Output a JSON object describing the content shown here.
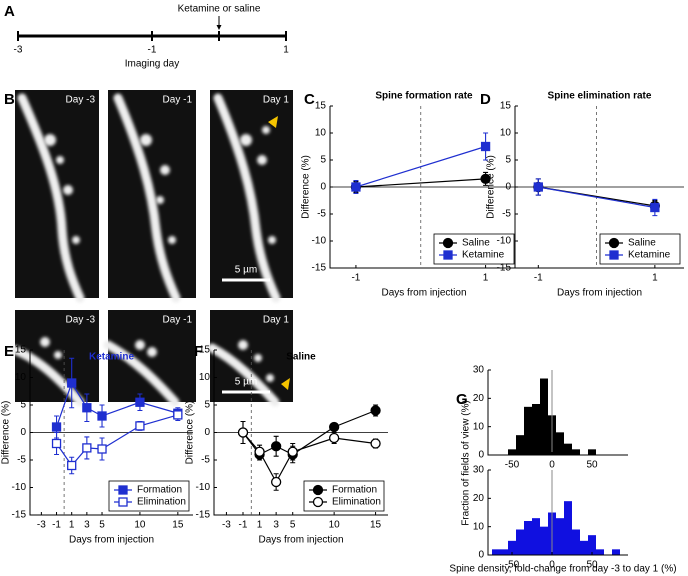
{
  "panel_labels": [
    "A",
    "B",
    "C",
    "D",
    "E",
    "F",
    "G"
  ],
  "timeline": {
    "ticks": [
      -3,
      -1,
      1
    ],
    "label": "Imaging day",
    "event": "Ketamine or saline",
    "event_at": 0
  },
  "micrographs": {
    "rows": [
      [
        "Day -3",
        "Day -1",
        "Day 1"
      ],
      [
        "Day -3",
        "Day -1",
        "Day 1"
      ]
    ],
    "scale_bars": [
      "5 µm",
      "5 µm"
    ]
  },
  "chart_data": [
    {
      "type": "line",
      "title": "Spine formation rate",
      "xlabel": "Days from injection",
      "ylabel": "Difference (%)",
      "xlim": [
        -1.4,
        1.5
      ],
      "xticks": [
        -1,
        1
      ],
      "ylim": [
        -15,
        15
      ],
      "yticks": [
        -15,
        -10,
        -5,
        0,
        5,
        10,
        15
      ],
      "vline": 0,
      "hline": 0,
      "legend": "lower right",
      "x": [
        -1,
        1
      ],
      "series": [
        {
          "name": "Saline",
          "color": "#000000",
          "marker": "circle",
          "filled": true,
          "values": [
            0,
            1.5
          ],
          "errors": [
            1,
            1.2
          ]
        },
        {
          "name": "Ketamine",
          "color": "#1f2fd0",
          "marker": "square",
          "filled": true,
          "values": [
            0,
            7.5
          ],
          "errors": [
            1.2,
            2.5
          ]
        }
      ]
    },
    {
      "type": "line",
      "title": "Spine elimination rate",
      "xlabel": "Days from injection",
      "ylabel": "Difference (%)",
      "xlim": [
        -1.4,
        1.5
      ],
      "xticks": [
        -1,
        1
      ],
      "ylim": [
        -15,
        15
      ],
      "yticks": [
        -15,
        -10,
        -5,
        0,
        5,
        10,
        15
      ],
      "vline": 0,
      "hline": 0,
      "legend": "lower right",
      "x": [
        -1,
        1
      ],
      "series": [
        {
          "name": "Saline",
          "color": "#000000",
          "marker": "circle",
          "filled": true,
          "values": [
            0,
            -3.5
          ],
          "errors": [
            1.5,
            1
          ]
        },
        {
          "name": "Ketamine",
          "color": "#1f2fd0",
          "marker": "square",
          "filled": true,
          "values": [
            0,
            -3.8
          ],
          "errors": [
            1.5,
            1.5
          ]
        }
      ]
    },
    {
      "type": "line",
      "title": "Ketamine",
      "title_color": "#1f2fd0",
      "xlabel": "Days from injection",
      "ylabel": "Difference (%)",
      "xlim": [
        -4.5,
        17
      ],
      "xticks": [
        -3,
        -1,
        1,
        3,
        5,
        10,
        15
      ],
      "ylim": [
        -15,
        15
      ],
      "yticks": [
        -15,
        -10,
        -5,
        0,
        5,
        10,
        15
      ],
      "vline": 0,
      "hline": 0,
      "legend": "lower right",
      "x": [
        -1,
        1,
        3,
        5,
        10,
        15
      ],
      "series": [
        {
          "name": "Formation",
          "color": "#1f2fd0",
          "marker": "square",
          "filled": true,
          "values": [
            1,
            9,
            4.5,
            3,
            5.5,
            3.5
          ],
          "errors": [
            2,
            4.5,
            2.5,
            2,
            1.5,
            1
          ]
        },
        {
          "name": "Elimination",
          "color": "#1f2fd0",
          "marker": "square",
          "filled": false,
          "values": [
            -2,
            -6,
            -2.8,
            -3,
            1.2,
            3.2
          ],
          "errors": [
            2,
            1.5,
            2,
            2,
            0.8,
            1
          ]
        }
      ]
    },
    {
      "type": "line",
      "title": "Saline",
      "title_color": "#000000",
      "xlabel": "Days from injection",
      "ylabel": "Difference (%)",
      "xlim": [
        -4.5,
        16.5
      ],
      "xticks": [
        -3,
        -1,
        1,
        3,
        5,
        10,
        15
      ],
      "ylim": [
        -15,
        15
      ],
      "yticks": [
        -15,
        -10,
        -5,
        0,
        5,
        10,
        15
      ],
      "vline": 0,
      "hline": 0,
      "legend": "lower right",
      "x": [
        -1,
        1,
        3,
        5,
        10,
        15
      ],
      "series": [
        {
          "name": "Formation",
          "color": "#000000",
          "marker": "circle",
          "filled": true,
          "values": [
            0,
            -4,
            -2.5,
            -4,
            1,
            4
          ],
          "errors": [
            2,
            1,
            1.8,
            1.5,
            0.7,
            1
          ]
        },
        {
          "name": "Elimination",
          "color": "#000000",
          "marker": "circle",
          "filled": false,
          "values": [
            0,
            -3.5,
            -9,
            -3.5,
            -1,
            -2
          ],
          "errors": [
            2,
            1.2,
            1.5,
            1.5,
            1,
            0.8
          ]
        }
      ]
    },
    {
      "type": "histogram",
      "ylabel": "Fraction of fields of view (%)",
      "color": "#000000",
      "bins": [
        -55,
        -45,
        -35,
        -25,
        -15,
        -5,
        5,
        15,
        25,
        35,
        45,
        55
      ],
      "values": [
        2,
        7,
        17,
        18,
        27,
        14,
        8,
        4,
        2,
        0,
        2
      ],
      "xlim": [
        -80,
        95
      ],
      "xticks": [
        -50,
        0,
        50
      ],
      "ylim": [
        0,
        30
      ],
      "yticks": [
        0,
        10,
        20,
        30
      ],
      "vline": 0
    },
    {
      "type": "histogram",
      "xlabel": "Spine density, fold-change from day -3 to day 1 (%)",
      "color": "#1010e0",
      "bins": [
        -75,
        -65,
        -55,
        -45,
        -35,
        -25,
        -15,
        -5,
        5,
        15,
        25,
        35,
        45,
        55,
        65,
        75,
        85
      ],
      "values": [
        2,
        2,
        5,
        9,
        12,
        13,
        10,
        15,
        13,
        19,
        9,
        5,
        7,
        2,
        0,
        2
      ],
      "xlim": [
        -80,
        95
      ],
      "xticks": [
        -50,
        0,
        50
      ],
      "ylim": [
        0,
        30
      ],
      "yticks": [
        0,
        10,
        20,
        30
      ],
      "vline": 0
    }
  ]
}
